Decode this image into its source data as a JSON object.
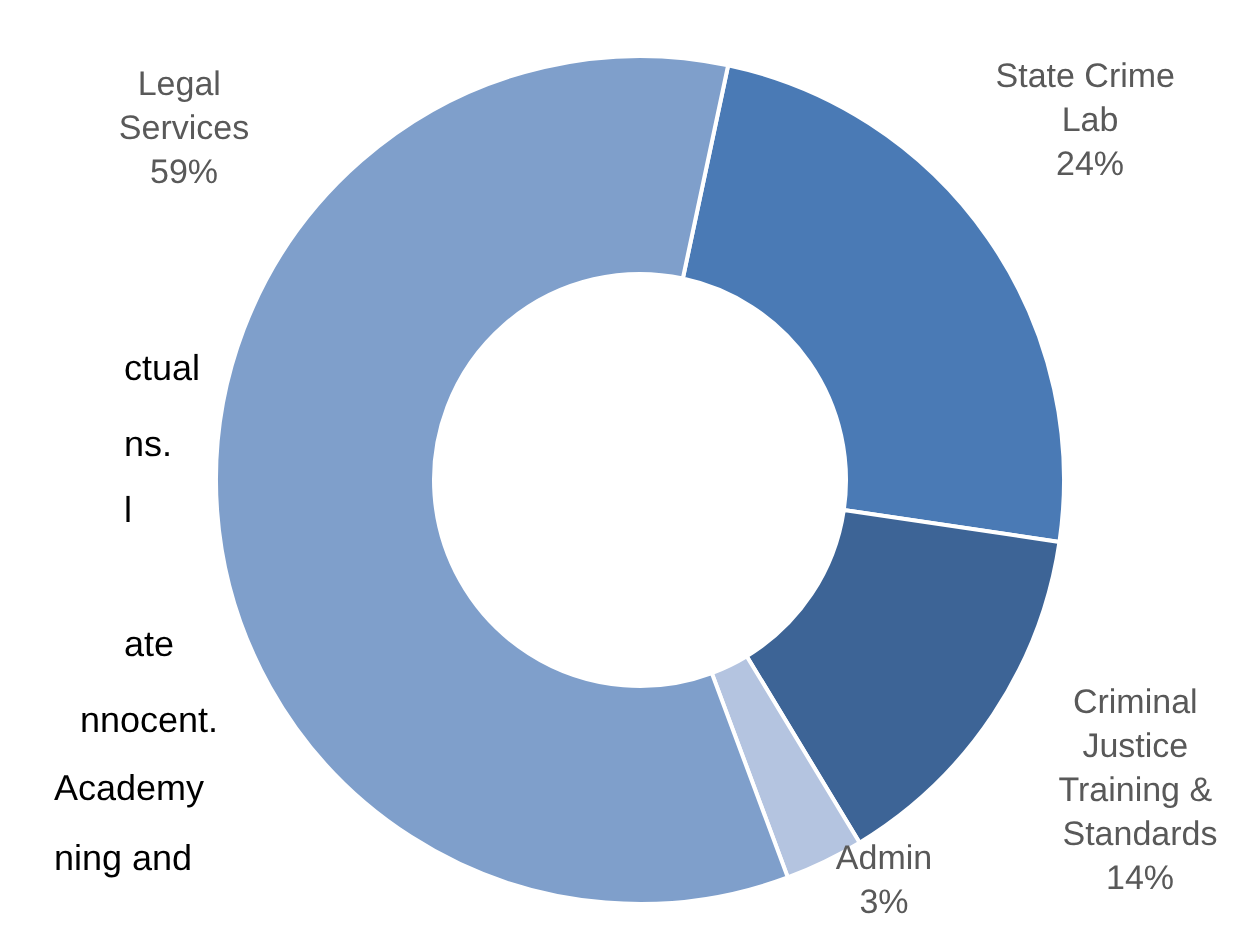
{
  "chart_data": {
    "type": "donut",
    "categories": [
      "State Crime Lab",
      "Criminal Justice Training & Standards",
      "Admin",
      "Legal Services"
    ],
    "values": [
      24,
      14,
      3,
      59
    ],
    "value_labels": [
      "24%",
      "14%",
      "3%",
      "59%"
    ],
    "colors": [
      "#4a7ab5",
      "#3d6496",
      "#b4c4e0",
      "#7f9fcb"
    ],
    "annotations": [
      "ctual",
      "ns.",
      "l",
      "ate",
      "nnocent.",
      "Academy",
      "ning and"
    ]
  }
}
